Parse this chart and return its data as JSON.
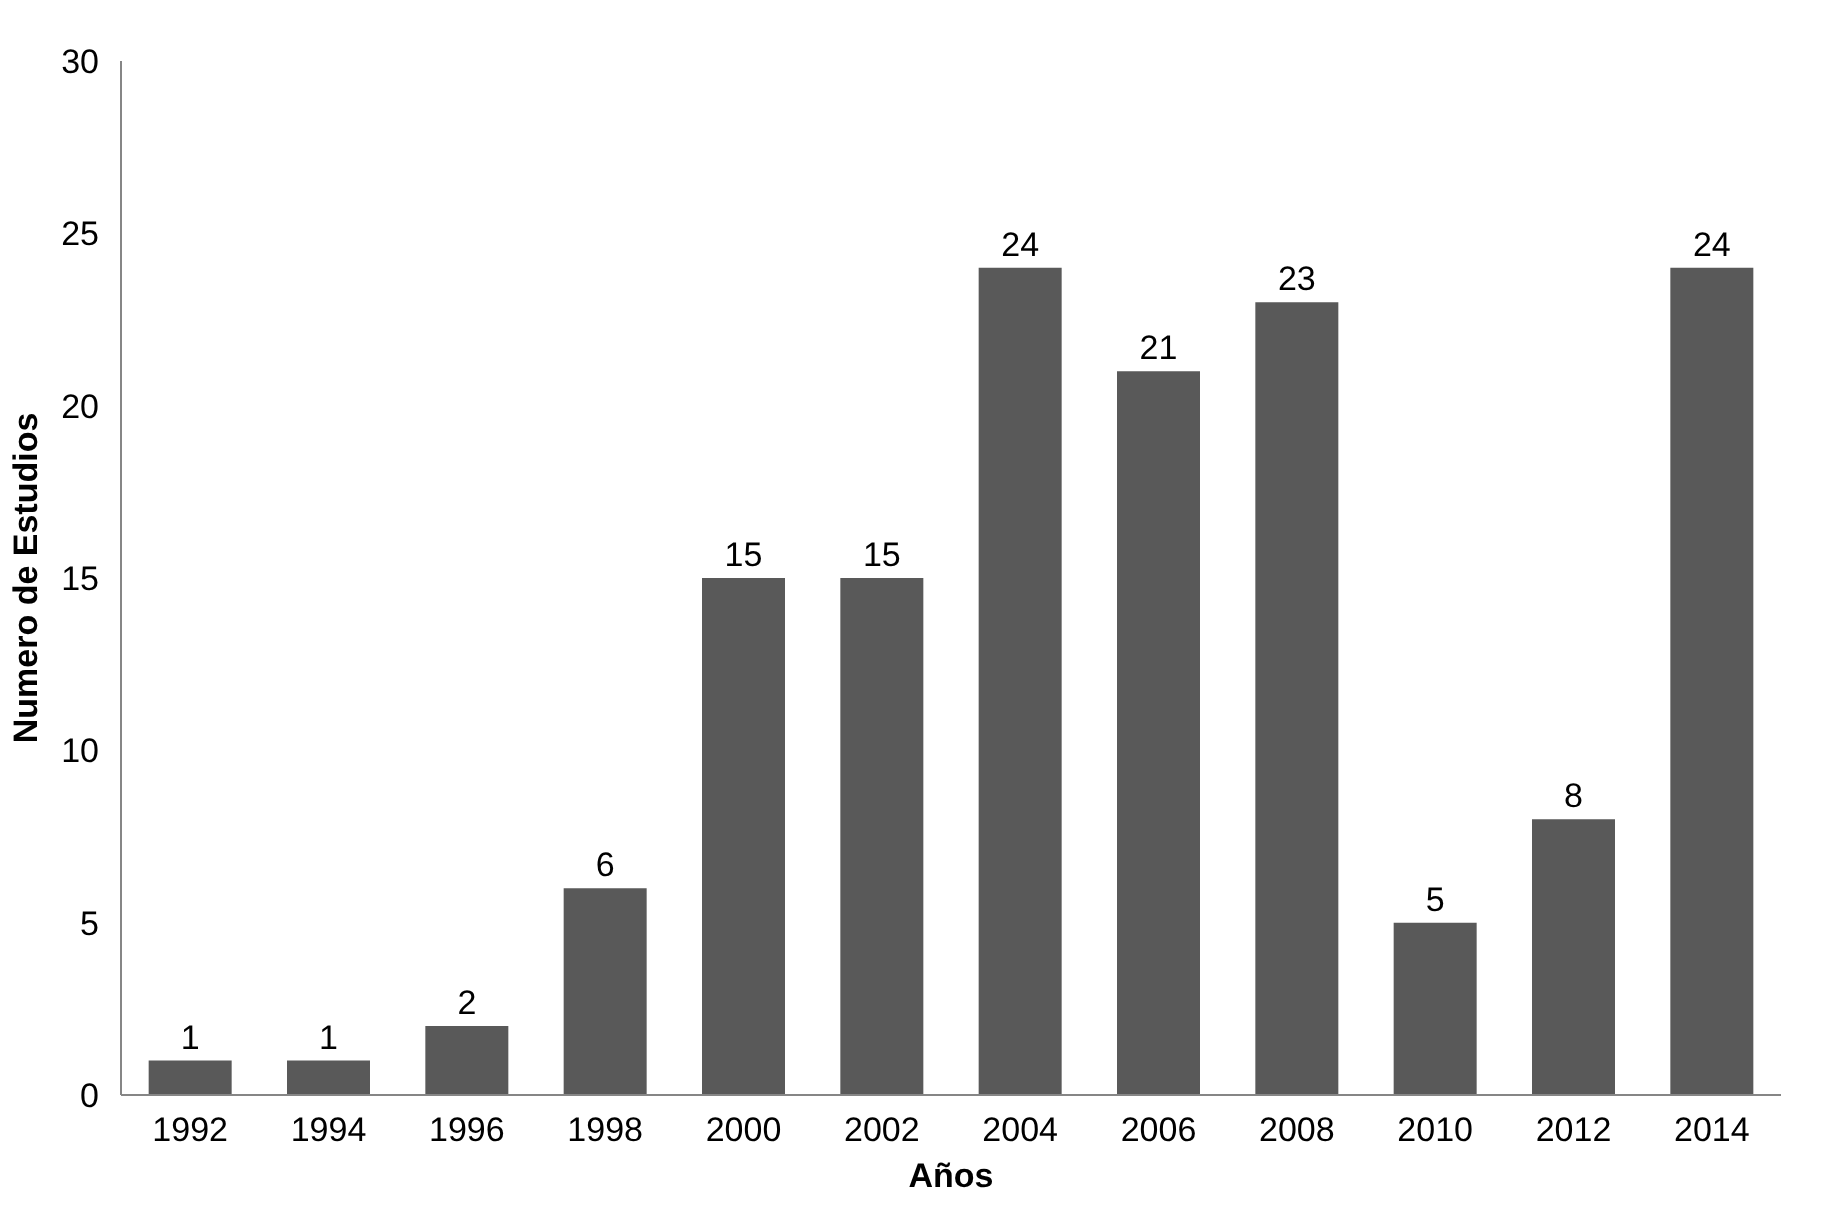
{
  "chart_data": {
    "type": "bar",
    "xlabel": "Años",
    "ylabel": "Numero de Estudios",
    "categories": [
      "1992",
      "1994",
      "1996",
      "1998",
      "2000",
      "2002",
      "2004",
      "2006",
      "2008",
      "2010",
      "2012",
      "2014"
    ],
    "values": [
      1,
      1,
      2,
      6,
      15,
      15,
      24,
      21,
      23,
      5,
      8,
      24
    ],
    "color": "#595959",
    "ylim": [
      0,
      30
    ],
    "yticks": [
      0,
      5,
      10,
      15,
      20,
      25,
      30
    ],
    "data_labels": true,
    "grid": false
  }
}
